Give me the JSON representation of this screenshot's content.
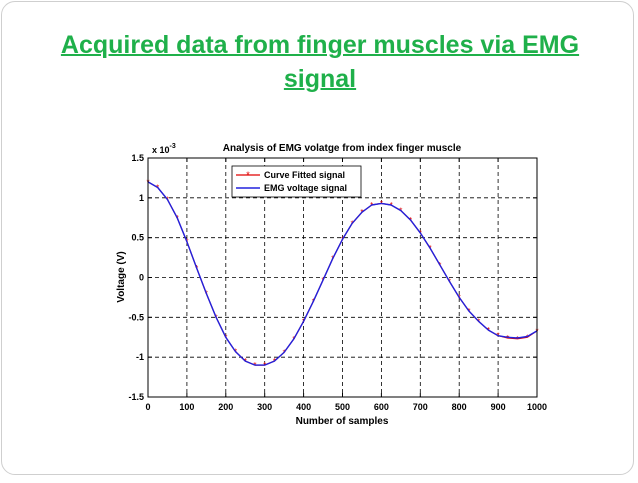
{
  "slide": {
    "title": "Acquired data from finger muscles via EMG signal"
  },
  "chart_data": {
    "type": "line",
    "title": "Analysis of EMG volatge from index finger muscle",
    "xlabel": "Number of samples",
    "ylabel": "Voltage (V)",
    "y_multiplier_label": "x 10",
    "y_multiplier_exponent": "-3",
    "xlim": [
      0,
      1000
    ],
    "ylim": [
      -1.5,
      1.5
    ],
    "x_ticks": [
      0,
      100,
      200,
      300,
      400,
      500,
      600,
      700,
      800,
      900,
      1000
    ],
    "y_ticks": [
      -1.5,
      -1,
      -0.5,
      0,
      0.5,
      1,
      1.5
    ],
    "y_tick_labels": [
      "-1.5",
      "-1",
      "-0.5",
      "0",
      "0.5",
      "1",
      "1.5"
    ],
    "grid": true,
    "legend_position": "top-left",
    "x": [
      0,
      25,
      50,
      75,
      100,
      125,
      150,
      175,
      200,
      225,
      250,
      275,
      300,
      325,
      350,
      375,
      400,
      425,
      450,
      475,
      500,
      525,
      550,
      575,
      600,
      625,
      650,
      675,
      700,
      725,
      750,
      775,
      800,
      825,
      850,
      875,
      900,
      925,
      950,
      975,
      1000
    ],
    "series": [
      {
        "name": "Curve Fitted signal",
        "color": "#e00000",
        "marker": "*",
        "values": [
          1.2,
          1.13,
          0.98,
          0.75,
          0.45,
          0.12,
          -0.2,
          -0.5,
          -0.75,
          -0.93,
          -1.05,
          -1.1,
          -1.1,
          -1.05,
          -0.94,
          -0.77,
          -0.55,
          -0.3,
          -0.03,
          0.24,
          0.48,
          0.68,
          0.82,
          0.91,
          0.93,
          0.91,
          0.84,
          0.72,
          0.56,
          0.37,
          0.16,
          -0.05,
          -0.25,
          -0.42,
          -0.55,
          -0.66,
          -0.73,
          -0.76,
          -0.77,
          -0.75,
          -0.67
        ]
      },
      {
        "name": "EMG voltage signal",
        "color": "#2222dd",
        "marker": "",
        "values": [
          1.2,
          1.13,
          0.98,
          0.75,
          0.45,
          0.12,
          -0.2,
          -0.5,
          -0.75,
          -0.93,
          -1.05,
          -1.1,
          -1.1,
          -1.05,
          -0.94,
          -0.77,
          -0.55,
          -0.3,
          -0.03,
          0.24,
          0.48,
          0.68,
          0.82,
          0.91,
          0.93,
          0.91,
          0.84,
          0.72,
          0.56,
          0.37,
          0.16,
          -0.05,
          -0.25,
          -0.42,
          -0.55,
          -0.66,
          -0.73,
          -0.75,
          -0.76,
          -0.74,
          -0.67
        ]
      }
    ]
  }
}
